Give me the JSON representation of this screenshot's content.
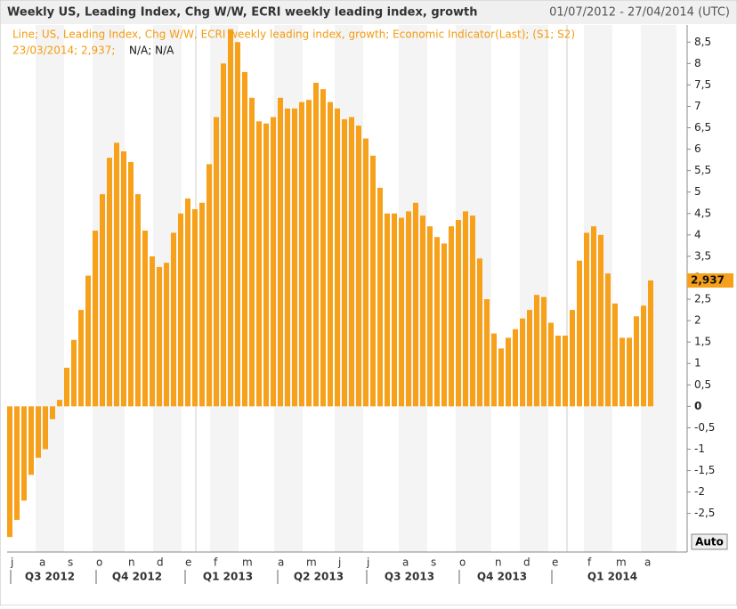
{
  "chart_data": {
    "type": "bar",
    "title": "Weekly US, Leading Index, Chg W/W, ECRI weekly leading index, growth",
    "date_range": "01/07/2012 - 27/04/2014 (UTC)",
    "legend_line1": "Line; US, Leading Index, Chg W/W, ECRI weekly leading index, growth; Economic Indicator(Last); (S1; S2)",
    "legend_line2": "23/03/2014; 2,937;",
    "legend_line2_na": "N/A; N/A",
    "last_label": "2,937",
    "button": "Auto",
    "color": "#f7a11a",
    "values": [
      -3.05,
      -2.65,
      -2.2,
      -1.6,
      -1.2,
      -1.0,
      -0.3,
      0.15,
      0.9,
      1.55,
      2.25,
      3.05,
      4.1,
      4.95,
      5.8,
      6.15,
      5.95,
      5.7,
      4.95,
      4.1,
      3.5,
      3.25,
      3.35,
      4.05,
      4.5,
      4.85,
      4.6,
      4.75,
      5.65,
      6.75,
      8.0,
      8.8,
      8.5,
      7.8,
      7.2,
      6.65,
      6.6,
      6.75,
      7.2,
      6.95,
      6.95,
      7.1,
      7.15,
      7.55,
      7.4,
      7.1,
      6.95,
      6.7,
      6.75,
      6.55,
      6.25,
      5.85,
      5.1,
      4.5,
      4.5,
      4.4,
      4.55,
      4.75,
      4.45,
      4.2,
      3.95,
      3.8,
      4.2,
      4.35,
      4.55,
      4.45,
      3.45,
      2.5,
      1.7,
      1.35,
      1.6,
      1.8,
      2.05,
      2.25,
      2.6,
      2.55,
      1.95,
      1.65,
      1.65,
      2.25,
      3.4,
      4.05,
      4.2,
      4.0,
      3.1,
      2.4,
      1.6,
      1.6,
      2.1,
      2.35,
      2.937
    ],
    "months": [
      "j",
      "a",
      "s",
      "o",
      "n",
      "d",
      "e",
      "f",
      "m",
      "a",
      "m",
      "j",
      "j",
      "a",
      "s",
      "o",
      "n",
      "d",
      "e",
      "f",
      "m",
      "a"
    ],
    "quarters": [
      "Q3 2012",
      "Q4 2012",
      "Q1 2013",
      "Q2 2013",
      "Q3 2013",
      "Q4 2013",
      "Q1 2014"
    ],
    "ylim": [
      -3.4,
      8.9
    ],
    "yticks": [
      {
        "value": 8.5,
        "label": "8,5"
      },
      8,
      {
        "value": 7.5,
        "label": "7,5"
      },
      7,
      {
        "value": 6.5,
        "label": "6,5"
      },
      6,
      {
        "value": 5.5,
        "label": "5,5"
      },
      5,
      {
        "value": 4.5,
        "label": "4,5"
      },
      4,
      {
        "value": 3.5,
        "label": "3,5"
      },
      3,
      {
        "value": 2.5,
        "label": "2,5"
      },
      2,
      {
        "value": 1.5,
        "label": "1,5"
      },
      1,
      {
        "value": 0.5,
        "label": "0,5"
      },
      0,
      {
        "value": -0.5,
        "label": "-0,5"
      },
      -1,
      {
        "value": -1.5,
        "label": "-1,5"
      },
      -2,
      {
        "value": -2.5,
        "label": "-2,5"
      }
    ]
  }
}
